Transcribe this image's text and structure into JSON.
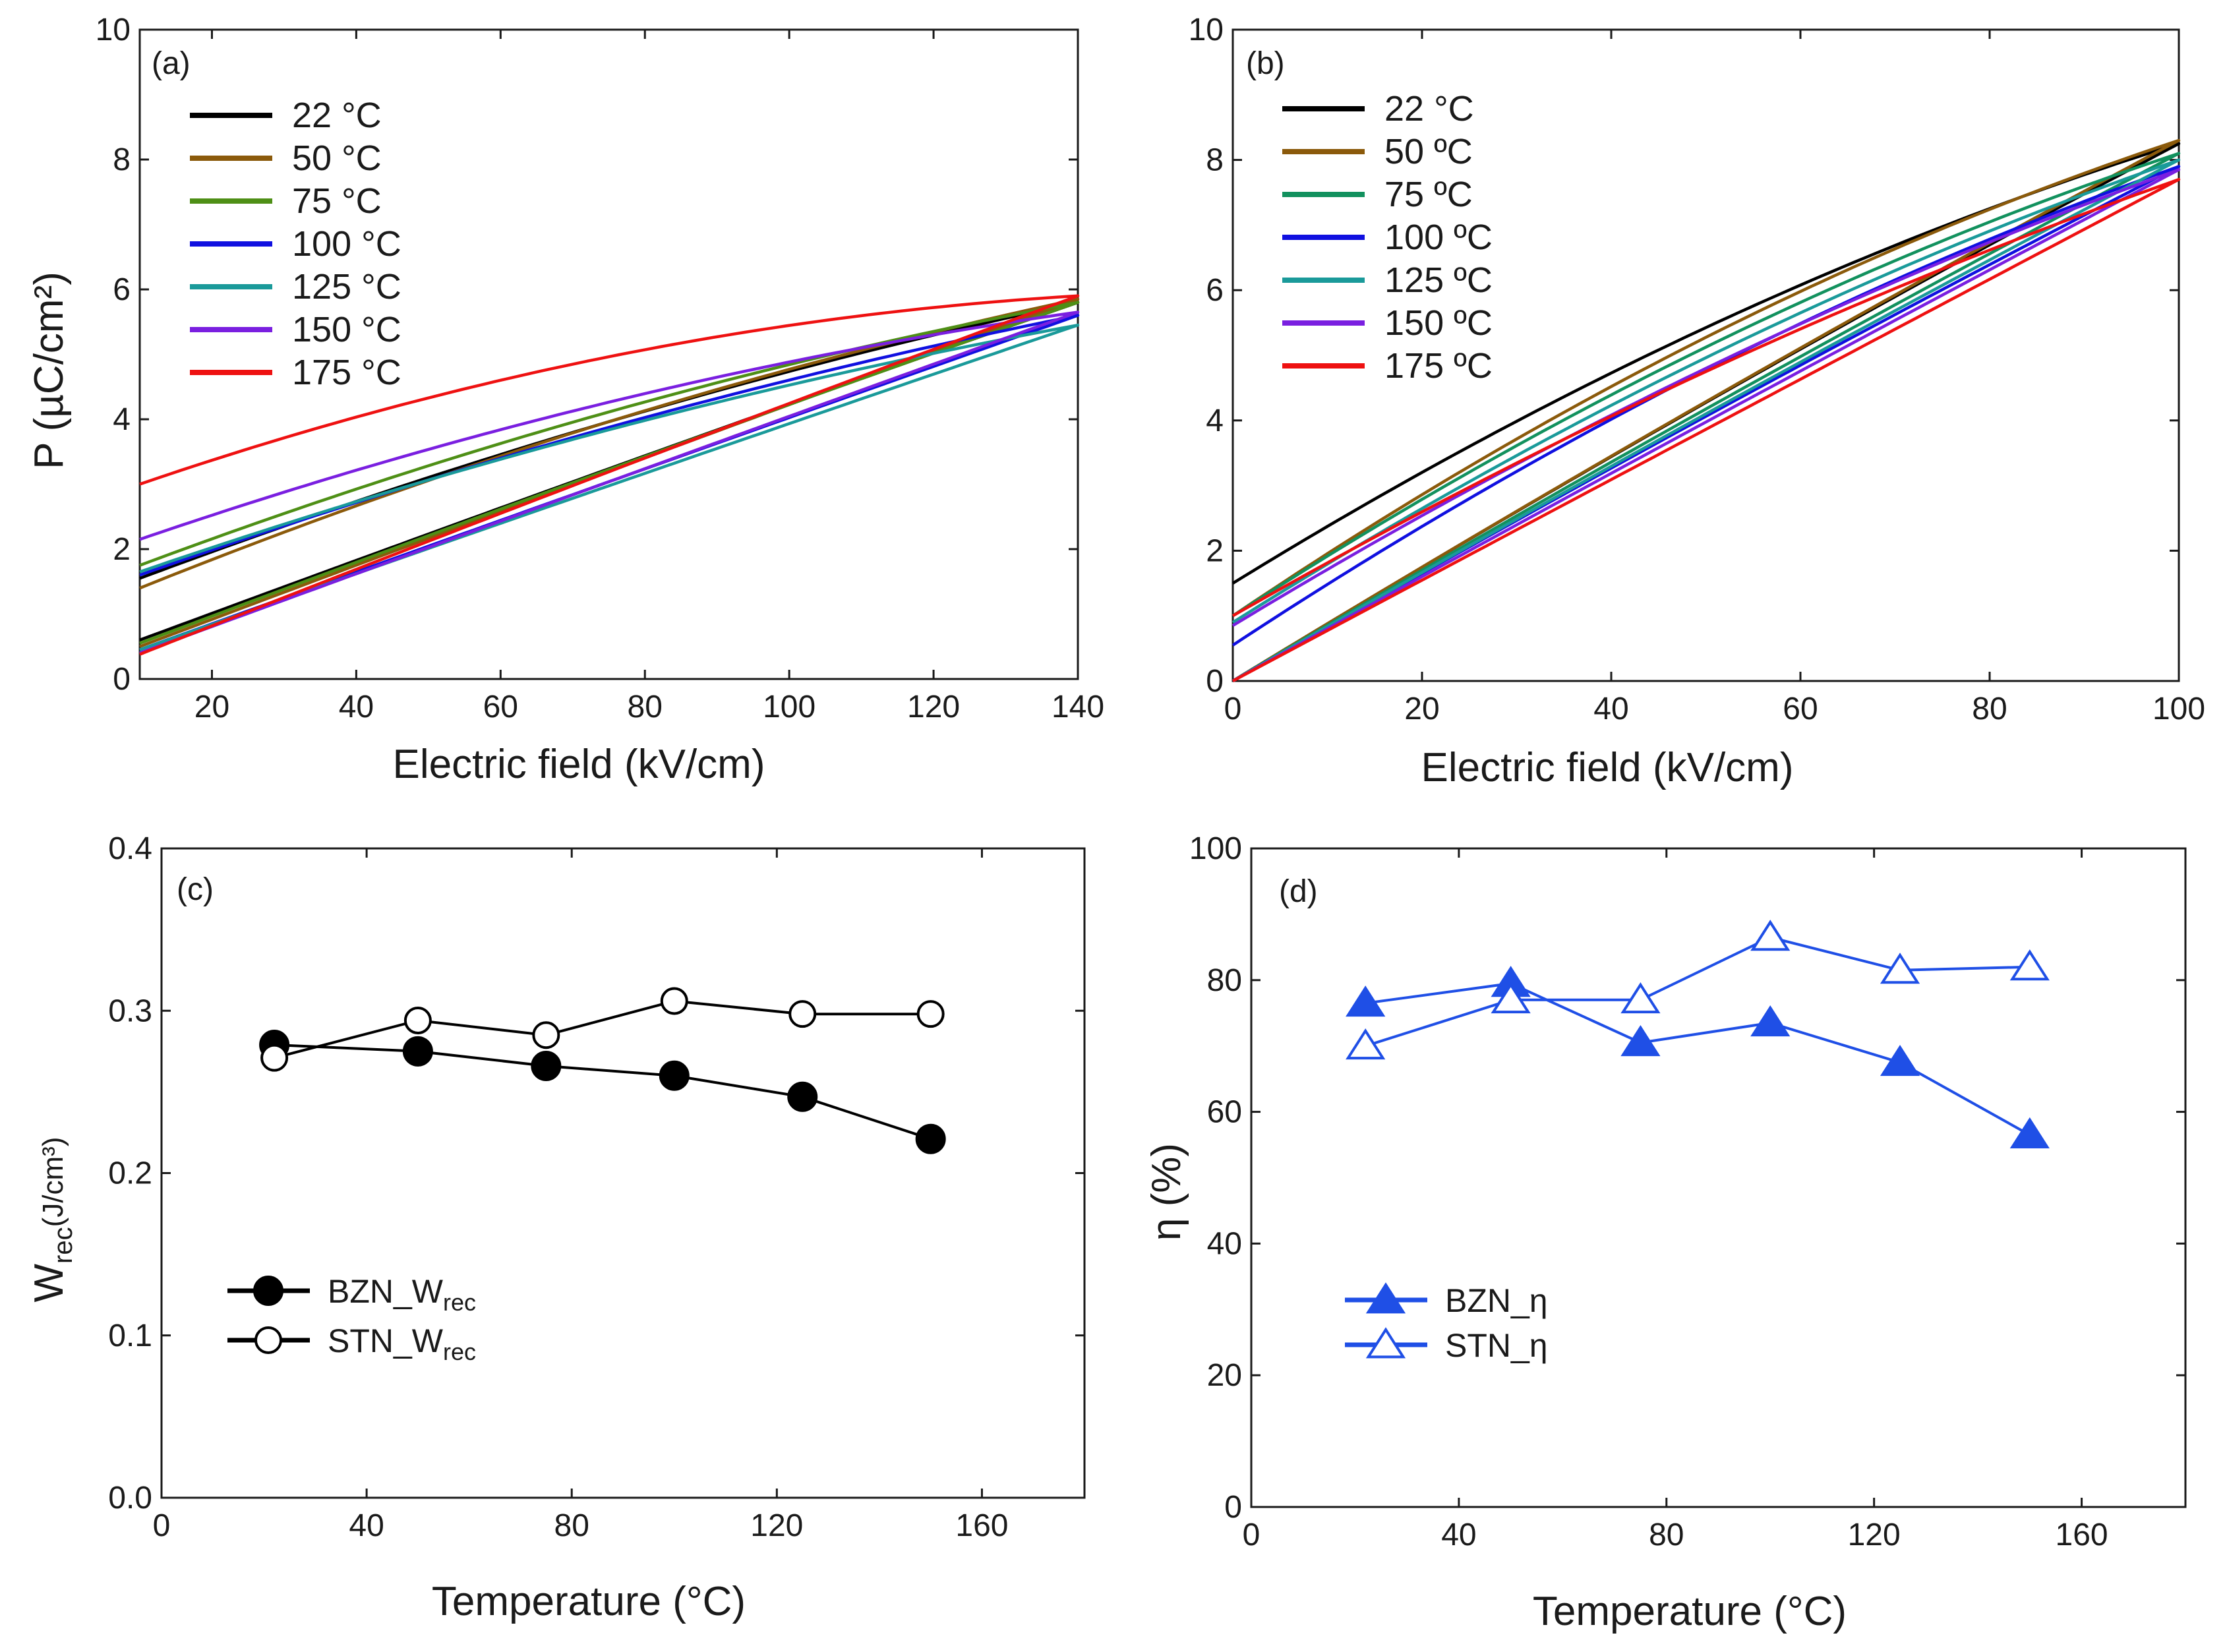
{
  "figure": {
    "panels": [
      "(a)",
      "(b)",
      "(c)",
      "(d)"
    ]
  },
  "chart_data": [
    {
      "id": "a",
      "type": "line",
      "panel_label": "(a)",
      "xlabel": "Electric field (kV/cm)",
      "ylabel": "P (µC/cm²)",
      "xlim": [
        10,
        140
      ],
      "ylim": [
        0,
        10
      ],
      "xticks": [
        "20",
        "40",
        "60",
        "80",
        "100",
        "120",
        "140"
      ],
      "yticks": [
        "0",
        "2",
        "4",
        "6",
        "8",
        "10"
      ],
      "legend_position": "top-left",
      "series": [
        {
          "name": "22 °C",
          "color": "#000000",
          "emax": 140,
          "pmax": 5.8,
          "up": {
            "start": 0.6,
            "curv": 0.15
          },
          "down": {
            "start": 1.55,
            "curv": 1.15
          }
        },
        {
          "name": "50 °C",
          "color": "#8B5A0B",
          "emax": 140,
          "pmax": 5.85,
          "up": {
            "start": 0.5,
            "curv": 0.1
          },
          "down": {
            "start": 1.4,
            "curv": 1.35
          }
        },
        {
          "name": "75 °C",
          "color": "#4E8F16",
          "emax": 140,
          "pmax": 5.8,
          "up": {
            "start": 0.55,
            "curv": 0.2
          },
          "down": {
            "start": 1.75,
            "curv": 1.35
          }
        },
        {
          "name": "100 °C",
          "color": "#1010E0",
          "emax": 140,
          "pmax": 5.6,
          "up": {
            "start": 0.45,
            "curv": 0.05
          },
          "down": {
            "start": 1.6,
            "curv": 1.1
          }
        },
        {
          "name": "125 °C",
          "color": "#1A9A9A",
          "emax": 140,
          "pmax": 5.45,
          "up": {
            "start": 0.45,
            "curv": 0.1
          },
          "down": {
            "start": 1.65,
            "curv": 1.15
          }
        },
        {
          "name": "150 °C",
          "color": "#7A1FE0",
          "emax": 140,
          "pmax": 5.65,
          "up": {
            "start": 0.4,
            "curv": 0.05
          },
          "down": {
            "start": 2.15,
            "curv": 1.45
          }
        },
        {
          "name": "175 °C",
          "color": "#EE1111",
          "emax": 140,
          "pmax": 5.9,
          "up": {
            "start": 0.38,
            "curv": 0.2
          },
          "down": {
            "start": 3.0,
            "curv": 2.05
          }
        }
      ]
    },
    {
      "id": "b",
      "type": "line",
      "panel_label": "(b)",
      "xlabel": "Electric field (kV/cm)",
      "ylabel": "",
      "xlim": [
        0,
        100
      ],
      "ylim": [
        0,
        10
      ],
      "xticks": [
        "0",
        "20",
        "40",
        "60",
        "80",
        "100"
      ],
      "yticks": [
        "0",
        "2",
        "4",
        "6",
        "8",
        "10"
      ],
      "legend_position": "top-left",
      "series": [
        {
          "name": "22 °C",
          "color": "#000000",
          "emax": 100,
          "pmax": 8.25,
          "up": {
            "start": 0.0,
            "curv": 0.6
          },
          "down": {
            "start": 1.5,
            "curv": 2.2
          }
        },
        {
          "name": "50 ºC",
          "color": "#8B5A0B",
          "emax": 100,
          "pmax": 8.3,
          "up": {
            "start": 0.0,
            "curv": 0.55
          },
          "down": {
            "start": 1.0,
            "curv": 2.5
          }
        },
        {
          "name": "75 ºC",
          "color": "#12915E",
          "emax": 100,
          "pmax": 8.1,
          "up": {
            "start": 0.0,
            "curv": 0.5
          },
          "down": {
            "start": 1.0,
            "curv": 2.3
          }
        },
        {
          "name": "100 ºC",
          "color": "#1010E0",
          "emax": 100,
          "pmax": 7.9,
          "up": {
            "start": 0.0,
            "curv": 0.45
          },
          "down": {
            "start": 0.55,
            "curv": 2.2
          }
        },
        {
          "name": "125 ºC",
          "color": "#1A9A9A",
          "emax": 100,
          "pmax": 8.0,
          "up": {
            "start": 0.0,
            "curv": 0.4
          },
          "down": {
            "start": 0.9,
            "curv": 2.05
          }
        },
        {
          "name": "150 ºC",
          "color": "#7A1FE0",
          "emax": 100,
          "pmax": 7.85,
          "up": {
            "start": 0.0,
            "curv": 0.2
          },
          "down": {
            "start": 0.85,
            "curv": 1.8
          }
        },
        {
          "name": "175 ºC",
          "color": "#EE1111",
          "emax": 100,
          "pmax": 7.7,
          "up": {
            "start": 0.0,
            "curv": 0.05
          },
          "down": {
            "start": 1.0,
            "curv": 1.6
          }
        }
      ]
    },
    {
      "id": "c",
      "type": "line",
      "panel_label": "(c)",
      "xlabel": "Temperature (°C)",
      "ylabel": "W",
      "ylabel_sub": "rec",
      "ylabel_suffix": "(J/cm³)",
      "xlim": [
        0,
        180
      ],
      "ylim": [
        0.0,
        0.4
      ],
      "xticks": [
        "0",
        "40",
        "80",
        "120",
        "160"
      ],
      "yticks": [
        "0.0",
        "0.1",
        "0.2",
        "0.3",
        "0.4"
      ],
      "legend_position": "bottom-left",
      "x": [
        22,
        50,
        75,
        100,
        125,
        150
      ],
      "series": [
        {
          "name": "BZN_W",
          "name_sub": "rec",
          "marker": "filled-circle",
          "color": "#000000",
          "values": [
            0.279,
            0.275,
            0.266,
            0.26,
            0.247,
            0.221
          ]
        },
        {
          "name": "STN_W",
          "name_sub": "rec",
          "marker": "open-circle",
          "color": "#000000",
          "values": [
            0.271,
            0.294,
            0.285,
            0.306,
            0.298,
            0.298
          ]
        }
      ]
    },
    {
      "id": "d",
      "type": "line",
      "panel_label": "(d)",
      "xlabel": "Temperature (°C)",
      "ylabel": "η (%)",
      "xlim": [
        0,
        180
      ],
      "ylim": [
        0,
        100
      ],
      "xticks": [
        "0",
        "40",
        "80",
        "120",
        "160"
      ],
      "yticks": [
        "0",
        "20",
        "40",
        "60",
        "80",
        "100"
      ],
      "legend_position": "bottom-left",
      "x": [
        22,
        50,
        75,
        100,
        125,
        150
      ],
      "series": [
        {
          "name": "BZN_η",
          "marker": "filled-triangle",
          "color": "#1F4FE6",
          "values": [
            76.5,
            79.5,
            70.5,
            73.5,
            67.5,
            56.5
          ]
        },
        {
          "name": "STN_η",
          "marker": "open-triangle",
          "color": "#1F4FE6",
          "values": [
            70.0,
            77.0,
            77.0,
            86.5,
            81.5,
            82.0
          ]
        }
      ]
    }
  ]
}
